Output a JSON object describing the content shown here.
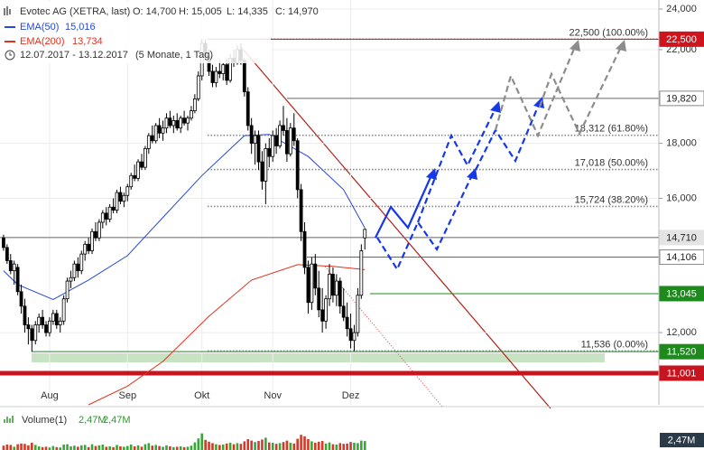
{
  "chart_data": {
    "type": "candlestick",
    "title": "Evotec AG (XETRA, last)",
    "ohlc_labels": [
      "O: 14,700",
      "H: 15,005",
      "L: 14,335",
      "C: 14,970"
    ],
    "period": "12.07.2017 - 13.12.2017",
    "period_note": "(5 Monate, 1 Tag)",
    "log_scale": true,
    "grid": true,
    "xlim": [
      -1,
      185
    ],
    "xticks": [
      {
        "value": 13,
        "label": "Aug"
      },
      {
        "value": 35,
        "label": "Sep"
      },
      {
        "value": 56,
        "label": "Okt"
      },
      {
        "value": 76,
        "label": "Nov"
      },
      {
        "value": 98,
        "label": "Dez"
      }
    ],
    "ylim": [
      10280,
      24470
    ],
    "yticks": [
      {
        "value": 12000,
        "label": "12,000"
      },
      {
        "value": 16000,
        "label": "16,000"
      },
      {
        "value": 18000,
        "label": "18,000"
      },
      {
        "value": 22000,
        "label": "22,000"
      },
      {
        "value": 24000,
        "label": "24,000"
      }
    ],
    "up_color": "#ffffff",
    "down_color": "#000000",
    "candles": [
      [
        14700,
        14800,
        14300,
        14400
      ],
      [
        14400,
        14500,
        13900,
        14000
      ],
      [
        14000,
        14200,
        13600,
        13700
      ],
      [
        13700,
        14000,
        13300,
        13900
      ],
      [
        13800,
        13900,
        13000,
        13100
      ],
      [
        13100,
        13300,
        12500,
        12700
      ],
      [
        12700,
        12900,
        12000,
        12200
      ],
      [
        12200,
        12400,
        11700,
        12100
      ],
      [
        12100,
        12200,
        11520,
        11800
      ],
      [
        11800,
        12300,
        11700,
        12200
      ],
      [
        12200,
        12500,
        12000,
        12400
      ],
      [
        12400,
        12600,
        12100,
        12200
      ],
      [
        12200,
        12300,
        11900,
        12000
      ],
      [
        12000,
        12400,
        11900,
        12300
      ],
      [
        12300,
        12600,
        12200,
        12500
      ],
      [
        12500,
        12600,
        12100,
        12200
      ],
      [
        12200,
        12400,
        12000,
        12300
      ],
      [
        12300,
        13000,
        12200,
        12900
      ],
      [
        12900,
        13500,
        12800,
        13400
      ],
      [
        13400,
        13700,
        13200,
        13500
      ],
      [
        13500,
        14000,
        13400,
        13900
      ],
      [
        13900,
        14100,
        13500,
        13700
      ],
      [
        13700,
        14300,
        13600,
        14200
      ],
      [
        14200,
        14600,
        14000,
        14500
      ],
      [
        14500,
        14700,
        14200,
        14300
      ],
      [
        14300,
        15000,
        14200,
        14900
      ],
      [
        14900,
        15200,
        14600,
        14700
      ],
      [
        14700,
        15300,
        14600,
        15200
      ],
      [
        15200,
        15600,
        15000,
        15500
      ],
      [
        15500,
        15700,
        15100,
        15300
      ],
      [
        15300,
        15800,
        15200,
        15700
      ],
      [
        15700,
        16000,
        15500,
        15600
      ],
      [
        15600,
        16300,
        15500,
        16200
      ],
      [
        16200,
        16400,
        15800,
        15900
      ],
      [
        15900,
        16200,
        15700,
        16100
      ],
      [
        16100,
        16500,
        15900,
        16400
      ],
      [
        16400,
        16900,
        16300,
        16800
      ],
      [
        16800,
        17200,
        16600,
        16700
      ],
      [
        16700,
        17400,
        16600,
        17300
      ],
      [
        17300,
        17600,
        17000,
        17100
      ],
      [
        17100,
        17900,
        17000,
        17800
      ],
      [
        17800,
        18400,
        17600,
        18300
      ],
      [
        18300,
        18700,
        18000,
        18100
      ],
      [
        18100,
        18800,
        18000,
        18700
      ],
      [
        18700,
        19000,
        18200,
        18400
      ],
      [
        18400,
        18900,
        18100,
        18600
      ],
      [
        18600,
        19200,
        18400,
        19000
      ],
      [
        19000,
        19300,
        18600,
        18700
      ],
      [
        18700,
        19100,
        18400,
        18900
      ],
      [
        18900,
        19200,
        18500,
        18600
      ],
      [
        18600,
        19100,
        18400,
        19000
      ],
      [
        19000,
        19300,
        18700,
        18800
      ],
      [
        18800,
        19100,
        18500,
        19000
      ],
      [
        19000,
        19500,
        18900,
        19300
      ],
      [
        19300,
        20000,
        19200,
        19800
      ],
      [
        19800,
        21000,
        19700,
        20800
      ],
      [
        20800,
        22500,
        20600,
        22300
      ],
      [
        22300,
        22500,
        21500,
        21700
      ],
      [
        21700,
        22000,
        20800,
        21000
      ],
      [
        21000,
        21300,
        20300,
        20500
      ],
      [
        20500,
        21200,
        20300,
        21000
      ],
      [
        21000,
        21500,
        20700,
        20900
      ],
      [
        20900,
        21400,
        20600,
        21300
      ],
      [
        21300,
        21600,
        20400,
        20600
      ],
      [
        20600,
        21800,
        20500,
        21600
      ],
      [
        21600,
        22000,
        21200,
        21400
      ],
      [
        21400,
        22200,
        21300,
        22000
      ],
      [
        22000,
        22300,
        21300,
        21500
      ],
      [
        21500,
        21600,
        19900,
        20100
      ],
      [
        20100,
        20300,
        18500,
        18700
      ],
      [
        18700,
        19000,
        17600,
        18000
      ],
      [
        18000,
        18500,
        17200,
        18300
      ],
      [
        18300,
        18500,
        17000,
        17300
      ],
      [
        17300,
        17700,
        16300,
        16600
      ],
      [
        16600,
        18000,
        15800,
        17800
      ],
      [
        17800,
        18200,
        17100,
        17500
      ],
      [
        17500,
        18500,
        17300,
        18300
      ],
      [
        18300,
        18600,
        17600,
        17900
      ],
      [
        17900,
        18900,
        17800,
        18700
      ],
      [
        18700,
        19500,
        18300,
        18500
      ],
      [
        18500,
        19000,
        17300,
        17600
      ],
      [
        17600,
        18800,
        17500,
        18600
      ],
      [
        18600,
        19200,
        17900,
        18100
      ],
      [
        18100,
        18200,
        16000,
        16300
      ],
      [
        16300,
        16500,
        14600,
        14900
      ],
      [
        14900,
        15200,
        13600,
        13800
      ],
      [
        13800,
        14000,
        12500,
        12800
      ],
      [
        12800,
        14100,
        12600,
        13900
      ],
      [
        13900,
        14200,
        13000,
        13200
      ],
      [
        13200,
        13700,
        12400,
        12600
      ],
      [
        12600,
        13200,
        12000,
        12300
      ],
      [
        12300,
        13000,
        12100,
        12900
      ],
      [
        12900,
        13900,
        12700,
        13600
      ],
      [
        13600,
        13800,
        12800,
        13000
      ],
      [
        13000,
        13600,
        12700,
        13400
      ],
      [
        13400,
        13500,
        12500,
        12700
      ],
      [
        12700,
        13200,
        12300,
        12400
      ],
      [
        12400,
        12800,
        11900,
        12100
      ],
      [
        12100,
        12500,
        11600,
        11800
      ],
      [
        11800,
        12200,
        11536,
        12000
      ],
      [
        12000,
        13200,
        11900,
        13000
      ],
      [
        13000,
        14500,
        12900,
        14300
      ],
      [
        14700,
        15005,
        14335,
        14970
      ]
    ],
    "series": [
      {
        "name": "EMA(50)",
        "value_label": "15,016",
        "color": "#2748d8",
        "x": [
          0,
          4,
          14,
          24,
          35,
          45,
          56,
          68,
          75,
          86,
          96,
          102
        ],
        "values": [
          13700,
          13300,
          12880,
          13430,
          14150,
          15360,
          16800,
          18300,
          18350,
          17500,
          16300,
          15016
        ]
      },
      {
        "name": "EMA(200)",
        "value_label": "13,734",
        "color": "#e0301e",
        "x": [
          24,
          35,
          45,
          58,
          70,
          83,
          93,
          102
        ],
        "values": [
          10280,
          10700,
          11280,
          12430,
          13430,
          13880,
          13830,
          13734
        ]
      }
    ],
    "levels": [
      {
        "value": 22500,
        "label": "22,500",
        "color": "#d0141e",
        "text_color": "#ffffff"
      },
      {
        "value": 19820,
        "label": "19,820",
        "color": "#ffffff",
        "text_color": "#222222"
      },
      {
        "value": 14710,
        "label": "14,710",
        "color": "#e4e4e4",
        "text_color": "#222222"
      },
      {
        "value": 14106,
        "label": "14,106",
        "color": "#ffffff",
        "text_color": "#222222"
      },
      {
        "value": 13045,
        "label": "13,045",
        "color": "#1e8a1e",
        "text_color": "#ffffff"
      },
      {
        "value": 11520,
        "label": "11,520",
        "color": "#1e8a1e",
        "text_color": "#ffffff"
      },
      {
        "value": 11001,
        "label": "11,001",
        "color": "#c8141e",
        "text_color": "#ffffff"
      }
    ],
    "fib": [
      {
        "value": 22500,
        "label": "22,500 (100.00%)"
      },
      {
        "value": 18312,
        "label": "18,312 (61.80%)"
      },
      {
        "value": 17018,
        "label": "17,018 (50.00%)"
      },
      {
        "value": 15724,
        "label": "15,724 (38.20%)"
      },
      {
        "value": 11536,
        "label": "11,536 (0.00%)"
      }
    ],
    "volume": {
      "name": "Volume(1)",
      "value_label": "2,47M",
      "last_label": "2,47M",
      "axis_label": "2,47M",
      "ylim": [
        0,
        7
      ],
      "values": [
        1.2,
        1.5,
        1.4,
        0.9,
        1.6,
        1.8,
        1.7,
        1.3,
        2.0,
        1.4,
        1.0,
        0.8,
        0.9,
        0.7,
        1.1,
        0.8,
        0.7,
        1.5,
        1.6,
        1.0,
        1.2,
        0.9,
        1.3,
        1.4,
        0.8,
        1.6,
        1.1,
        1.3,
        1.5,
        0.9,
        1.0,
        0.8,
        1.4,
        1.0,
        0.9,
        1.1,
        1.5,
        1.0,
        1.3,
        0.9,
        1.6,
        1.9,
        1.2,
        1.4,
        1.1,
        0.9,
        1.3,
        1.0,
        0.8,
        0.9,
        1.0,
        0.8,
        0.9,
        1.2,
        2.1,
        3.2,
        4.6,
        2.8,
        2.3,
        1.9,
        1.6,
        1.4,
        1.5,
        1.8,
        2.0,
        1.6,
        1.9,
        1.7,
        2.4,
        3.0,
        2.6,
        2.2,
        2.5,
        2.9,
        3.4,
        2.1,
        2.0,
        1.7,
        1.9,
        2.2,
        2.6,
        2.0,
        1.8,
        3.1,
        4.2,
        3.8,
        3.0,
        2.4,
        2.0,
        2.3,
        2.5,
        1.8,
        2.1,
        1.6,
        1.5,
        1.9,
        1.7,
        1.8,
        2.2,
        2.0,
        1.9,
        2.6,
        2.47
      ]
    }
  }
}
